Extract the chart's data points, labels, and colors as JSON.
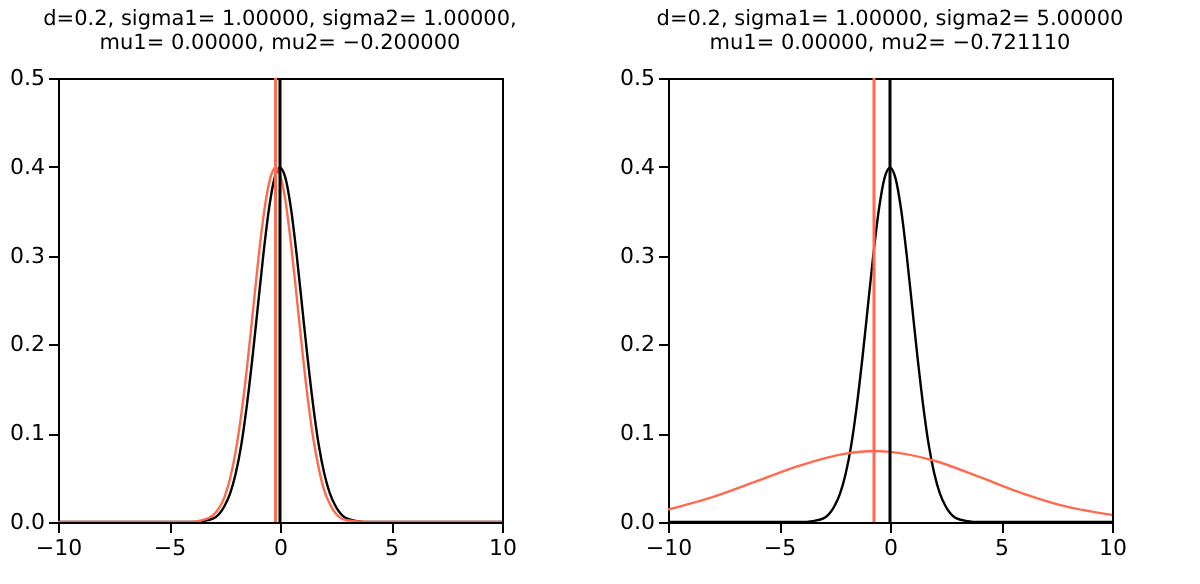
{
  "chart_data": [
    {
      "type": "line",
      "title": "d=0.2, sigma1= 1.00000, sigma2= 1.00000,\nmu1= 0.00000, mu2= −0.200000",
      "xlim": [
        -10,
        10
      ],
      "xticks": [
        -10,
        -5,
        0,
        5,
        10
      ],
      "ylim": [
        0,
        0.5
      ],
      "yticks": [
        {
          "value": 0,
          "label": "0.0"
        },
        0.1,
        0.2,
        0.3,
        0.4,
        0.5
      ],
      "grid": false,
      "series": [
        {
          "color": "#000000",
          "x": [
            -10,
            -4,
            -3.5,
            -3,
            -2.5,
            -2.25,
            -2,
            -1.75,
            -1.5,
            -1.25,
            -1,
            -0.75,
            -0.5,
            -0.25,
            0,
            0.25,
            0.5,
            0.75,
            1,
            1.25,
            1.5,
            1.75,
            2,
            2.25,
            2.5,
            3,
            3.5,
            4,
            10
          ],
          "values": [
            0,
            0,
            0.001,
            0.004,
            0.018,
            0.032,
            0.054,
            0.086,
            0.13,
            0.183,
            0.242,
            0.301,
            0.352,
            0.387,
            0.399,
            0.387,
            0.352,
            0.301,
            0.242,
            0.183,
            0.13,
            0.086,
            0.054,
            0.032,
            0.018,
            0.004,
            0.001,
            0,
            0
          ]
        },
        {
          "color": "#ff6a4d",
          "x": [
            -10,
            -4,
            -3.5,
            -3,
            -2.5,
            -2.25,
            -2,
            -1.75,
            -1.5,
            -1.25,
            -1,
            -0.75,
            -0.5,
            -0.2,
            0,
            0.25,
            0.5,
            0.75,
            1,
            1.25,
            1.5,
            1.75,
            2,
            2.25,
            2.5,
            3,
            4,
            10
          ],
          "values": [
            0,
            0,
            0.002,
            0.008,
            0.028,
            0.049,
            0.079,
            0.12,
            0.171,
            0.23,
            0.29,
            0.343,
            0.381,
            0.399,
            0.391,
            0.361,
            0.312,
            0.254,
            0.194,
            0.139,
            0.094,
            0.06,
            0.035,
            0.02,
            0.01,
            0.002,
            0,
            0
          ]
        }
      ],
      "ref_lines": [
        {
          "axis": "x",
          "value": 0,
          "color": "#000000"
        },
        {
          "axis": "x",
          "value": -0.2,
          "color": "#ff6a4d"
        }
      ]
    },
    {
      "type": "line",
      "title": "d=0.2, sigma1= 1.00000, sigma2= 5.00000\nmu1= 0.00000, mu2= −0.721110",
      "xlim": [
        -10,
        10
      ],
      "xticks": [
        -10,
        -5,
        0,
        5,
        10
      ],
      "ylim": [
        0,
        0.5
      ],
      "yticks": [
        {
          "value": 0,
          "label": "0.0"
        },
        0.1,
        0.2,
        0.3,
        0.4,
        0.5
      ],
      "grid": false,
      "series": [
        {
          "color": "#000000",
          "x": [
            -10,
            -4,
            -3.5,
            -3,
            -2.5,
            -2.25,
            -2,
            -1.75,
            -1.5,
            -1.25,
            -1,
            -0.75,
            -0.5,
            -0.25,
            0,
            0.25,
            0.5,
            0.75,
            1,
            1.25,
            1.5,
            1.75,
            2,
            2.25,
            2.5,
            3,
            3.5,
            4,
            10
          ],
          "values": [
            0,
            0,
            0.001,
            0.004,
            0.018,
            0.032,
            0.054,
            0.086,
            0.13,
            0.183,
            0.242,
            0.301,
            0.352,
            0.387,
            0.399,
            0.387,
            0.352,
            0.301,
            0.242,
            0.183,
            0.13,
            0.086,
            0.054,
            0.032,
            0.018,
            0.004,
            0.001,
            0,
            0
          ]
        },
        {
          "color": "#ff6a4d",
          "x": [
            -10,
            -8,
            -6,
            -4,
            -2,
            -0.721,
            0,
            2,
            4,
            6,
            8,
            10
          ],
          "values": [
            0.014,
            0.028,
            0.046,
            0.064,
            0.077,
            0.08,
            0.079,
            0.069,
            0.051,
            0.032,
            0.017,
            0.008
          ]
        }
      ],
      "ref_lines": [
        {
          "axis": "x",
          "value": 0,
          "color": "#000000"
        },
        {
          "axis": "x",
          "value": -0.721,
          "color": "#ff6a4d"
        }
      ]
    }
  ]
}
